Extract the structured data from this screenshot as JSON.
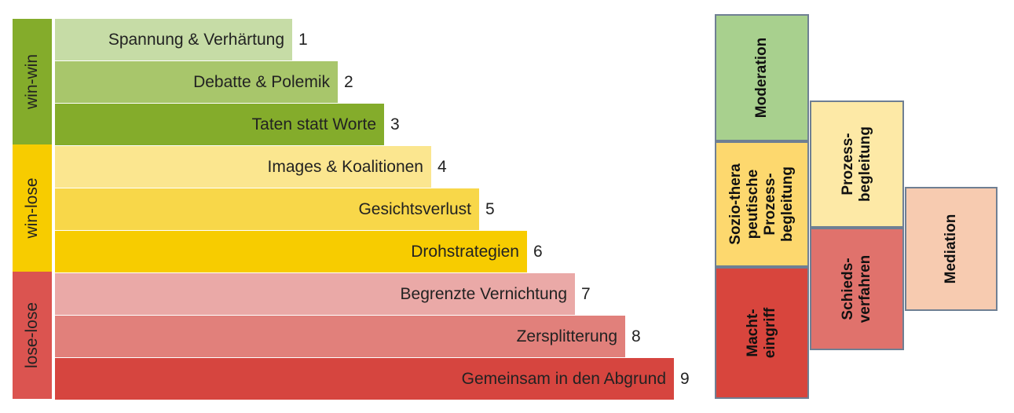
{
  "phases": [
    {
      "label": "win-win",
      "color": "#84ac2b"
    },
    {
      "label": "win-lose",
      "color": "#f7cc00"
    },
    {
      "label": "lose-lose",
      "color": "#db5450"
    }
  ],
  "stages": [
    {
      "label": "Spannung & Verhärtung",
      "number": "1",
      "color": "#c6dca6"
    },
    {
      "label": "Debatte & Polemik",
      "number": "2",
      "color": "#a8c66b"
    },
    {
      "label": "Taten statt Worte",
      "number": "3",
      "color": "#84ac2b"
    },
    {
      "label": "Images & Koalitionen",
      "number": "4",
      "color": "#fbe68f"
    },
    {
      "label": "Gesichtsverlust",
      "number": "5",
      "color": "#f8d749"
    },
    {
      "label": "Drohstrategien",
      "number": "6",
      "color": "#f7cc00"
    },
    {
      "label": "Begrenzte Vernichtung",
      "number": "7",
      "color": "#eaa9a7"
    },
    {
      "label": "Zersplitterung",
      "number": "8",
      "color": "#e1807b"
    },
    {
      "label": "Gemeinsam in den Abgrund",
      "number": "9",
      "color": "#d6453f"
    }
  ],
  "interventions": [
    {
      "label": "Moderation",
      "color": "#a8d08e"
    },
    {
      "label": "Sozio-thera\npeutische\nProzess-\nbegleitung",
      "color": "#fdd86e"
    },
    {
      "label": "Macht-\neingriff",
      "color": "#d8453d"
    },
    {
      "label": "Prozess-\nbegleitung",
      "color": "#fde9a6"
    },
    {
      "label": "Schieds-\nverfahren",
      "color": "#e0726c"
    },
    {
      "label": "Mediation",
      "color": "#f7cbb0"
    }
  ]
}
